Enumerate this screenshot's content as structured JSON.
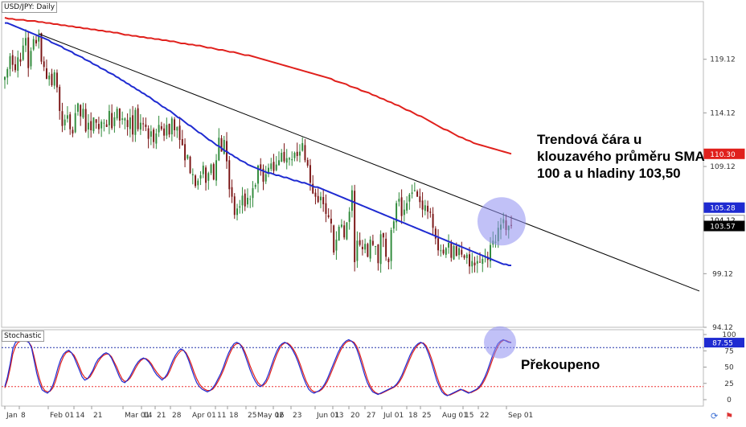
{
  "pair_label": "USD/JPY: Daily",
  "stoch_label": "Stochastic",
  "annotations": {
    "trendline_note": "Trendová čára u klouzavého průměru SMA 100 a u hladiny 103,50",
    "overbought_note": "Překoupeno"
  },
  "colors": {
    "sma100": "#1f2bd1",
    "sma200": "#e0201c",
    "bull": "#2f8a3a",
    "bear": "#7a1414",
    "stoch_k": "#1f2bd1",
    "stoch_d": "#e0201c",
    "highlight": "#8e8ef0",
    "level": "#e33"
  },
  "icons": {
    "settings": "refresh-icon",
    "flag": "flag-icon"
  },
  "chart_data": [
    {
      "type": "candlestick",
      "title": "USD/JPY: Daily",
      "ylim": [
        94.12,
        124.5
      ],
      "y_ticks": [
        94.12,
        99.12,
        104.12,
        109.12,
        114.12,
        119.12
      ],
      "x_tick_labels": [
        "Jan",
        "8",
        "Feb 01",
        "14",
        "21",
        "Mar 01",
        "14",
        "21",
        "28",
        "Apr 01",
        "11",
        "18",
        "25",
        "May 02",
        "16",
        "23",
        "Jun 01",
        "13",
        "20",
        "27",
        "Jul 01",
        "18",
        "25",
        "Aug 01",
        "15",
        "22",
        "Sep 01"
      ],
      "price_tags": [
        {
          "label": "110.30",
          "value": 110.3,
          "color": "#e0201c"
        },
        {
          "label": "105.28",
          "value": 105.28,
          "color": "#1f2bd1"
        },
        {
          "label": "104.12",
          "value": 104.12,
          "color": "#ffffff"
        },
        {
          "label": "103.57",
          "value": 103.57,
          "color": "#000000"
        }
      ],
      "closes": [
        117.5,
        118.2,
        119.4,
        118.6,
        118.1,
        119.3,
        118.9,
        120.4,
        121.1,
        118.3,
        119.9,
        121.0,
        120.6,
        121.4,
        118.9,
        118.4,
        117.3,
        117.6,
        116.7,
        117.9,
        116.5,
        114.3,
        112.9,
        113.5,
        113.9,
        112.6,
        112.2,
        114.1,
        115.0,
        113.8,
        114.5,
        112.4,
        113.2,
        112.5,
        113.7,
        113.2,
        112.6,
        113.3,
        113.2,
        112.8,
        114.3,
        112.7,
        113.7,
        114.5,
        113.4,
        113.6,
        113.6,
        112.8,
        113.7,
        112.1,
        114.4,
        112.6,
        113.2,
        113.1,
        112.8,
        111.7,
        112.4,
        111.4,
        112.2,
        113.0,
        112.6,
        112.0,
        113.0,
        112.1,
        113.6,
        112.5,
        112.8,
        111.6,
        111.1,
        109.7,
        110.2,
        108.5,
        108.4,
        107.3,
        107.8,
        108.3,
        109.2,
        107.6,
        108.5,
        109.3,
        107.9,
        109.7,
        111.8,
        110.5,
        111.6,
        109.6,
        107.0,
        106.3,
        104.6,
        105.2,
        105.4,
        106.4,
        105.4,
        106.2,
        106.1,
        107.1,
        107.4,
        109.2,
        108.9,
        107.7,
        108.4,
        109.0,
        109.4,
        108.7,
        109.3,
        109.7,
        110.4,
        109.6,
        109.9,
        109.9,
        109.8,
        110.4,
        110.1,
        110.5,
        111.3,
        109.7,
        109.2,
        107.6,
        106.6,
        106.3,
        105.8,
        106.3,
        105.6,
        104.7,
        104.4,
        103.8,
        101.1,
        102.3,
        103.5,
        103.7,
        102.5,
        103.9,
        104.9,
        106.9,
        100.2,
        102.2,
        101.8,
        101.4,
        101.9,
        100.7,
        102.3,
        101.8,
        101.7,
        100.1,
        102.8,
        102.5,
        100.7,
        100.2,
        103.2,
        104.0,
        105.7,
        106.1,
        104.5,
        105.1,
        105.7,
        106.5,
        106.7,
        106.9,
        106.3,
        105.8,
        105.1,
        105.5,
        104.9,
        104.8,
        103.4,
        102.4,
        101.3,
        101.3,
        101.0,
        101.5,
        102.0,
        100.6,
        101.7,
        100.8,
        101.5,
        100.9,
        100.6,
        100.9,
        99.8,
        100.3,
        99.9,
        100.3,
        100.2,
        100.5,
        100.8,
        100.4,
        101.8,
        102.2,
        102.1,
        103.4,
        103.7,
        104.2,
        103.2,
        103.6,
        103.6
      ],
      "series": [
        {
          "name": "SMA 100",
          "values": [
            122.5,
            122.5,
            122.4,
            122.3,
            122.2,
            122.1,
            122.0,
            121.9,
            121.8,
            121.7,
            121.6,
            121.5,
            121.4,
            121.3,
            121.2,
            121.1,
            121.0,
            120.9,
            120.7,
            120.6,
            120.5,
            120.4,
            120.3,
            120.1,
            120.0,
            119.9,
            119.8,
            119.6,
            119.5,
            119.4,
            119.3,
            119.1,
            119.0,
            118.9,
            118.7,
            118.6,
            118.5,
            118.3,
            118.2,
            118.1,
            117.9,
            117.8,
            117.7,
            117.5,
            117.4,
            117.2,
            117.1,
            116.9,
            116.8,
            116.6,
            116.5,
            116.3,
            116.2,
            116.0,
            115.9,
            115.7,
            115.6,
            115.4,
            115.2,
            115.1,
            114.9,
            114.7,
            114.6,
            114.4,
            114.3,
            114.1,
            113.9,
            113.7,
            113.6,
            113.4,
            113.2,
            113.0,
            112.9,
            112.7,
            112.5,
            112.3,
            112.2,
            112.0,
            111.8,
            111.6,
            111.5,
            111.3,
            111.1,
            111.0,
            110.8,
            110.6,
            110.5,
            110.3,
            110.2,
            110.0,
            109.9,
            109.7,
            109.6,
            109.5,
            109.3,
            109.2,
            109.1,
            109.0,
            108.9,
            108.8,
            108.7,
            108.6,
            108.5,
            108.5,
            108.4,
            108.3,
            108.3,
            108.2,
            108.1,
            108.1,
            108.0,
            107.9,
            107.8,
            107.8,
            107.7,
            107.6,
            107.6,
            107.5,
            107.4,
            107.3,
            107.2,
            107.2,
            107.1,
            107.0,
            106.9,
            106.8,
            106.7,
            106.6,
            106.5,
            106.4,
            106.3,
            106.2,
            106.1,
            106.0,
            105.9,
            105.8,
            105.7,
            105.6,
            105.5,
            105.4,
            105.3,
            105.2,
            105.1,
            105.0,
            104.9,
            104.8,
            104.7,
            104.6,
            104.5,
            104.4,
            104.3,
            104.2,
            104.1,
            104.0,
            103.9,
            103.8,
            103.7,
            103.6,
            103.5,
            103.4,
            103.3,
            103.2,
            103.1,
            103.0,
            102.9,
            102.8,
            102.7,
            102.6,
            102.5,
            102.4,
            102.3,
            102.2,
            102.1,
            102.0,
            101.9,
            101.8,
            101.7,
            101.6,
            101.5,
            101.4,
            101.3,
            101.2,
            101.1,
            101.0,
            100.9,
            100.8,
            100.7,
            100.6,
            100.5,
            100.4,
            100.3,
            100.2,
            100.1,
            100.0,
            100.0,
            99.9,
            99.9
          ]
        },
        {
          "name": "SMA 200",
          "values": [
            123.0,
            122.9,
            122.9,
            122.8,
            122.8,
            122.8,
            122.7,
            122.7,
            122.7,
            122.6,
            122.6,
            122.5,
            122.5,
            122.4,
            122.4,
            122.3,
            122.3,
            122.2,
            122.2,
            122.1,
            122.1,
            122.0,
            122.0,
            121.9,
            121.9,
            121.8,
            121.8,
            121.7,
            121.7,
            121.6,
            121.6,
            121.5,
            121.4,
            121.4,
            121.3,
            121.3,
            121.2,
            121.2,
            121.1,
            121.1,
            121.0,
            121.0,
            120.9,
            120.9,
            120.8,
            120.8,
            120.7,
            120.6,
            120.6,
            120.5,
            120.5,
            120.4,
            120.4,
            120.3,
            120.2,
            120.2,
            120.1,
            120.0,
            120.0,
            119.9,
            119.8,
            119.8,
            119.7,
            119.6,
            119.5,
            119.5,
            119.4,
            119.3,
            119.2,
            119.1,
            119.0,
            118.9,
            118.8,
            118.7,
            118.6,
            118.5,
            118.4,
            118.3,
            118.2,
            118.1,
            118.0,
            117.9,
            117.8,
            117.7,
            117.6,
            117.5,
            117.4,
            117.3,
            117.1,
            117.0,
            116.9,
            116.8,
            116.6,
            116.5,
            116.4,
            116.2,
            116.1,
            116.0,
            115.8,
            115.7,
            115.5,
            115.4,
            115.2,
            115.1,
            114.9,
            114.8,
            114.6,
            114.4,
            114.3,
            114.1,
            113.9,
            113.8,
            113.6,
            113.4,
            113.2,
            113.0,
            112.8,
            112.6,
            112.5,
            112.3,
            112.1,
            111.9,
            111.8,
            111.6,
            111.5,
            111.3,
            111.2,
            111.1,
            111.0,
            110.9,
            110.8,
            110.7,
            110.6,
            110.5,
            110.4,
            110.3,
            110.3,
            110.3,
            110.3,
            110.3,
            110.3,
            110.3,
            110.3,
            110.3,
            110.3,
            110.3,
            110.3,
            110.3,
            110.3,
            110.3,
            110.3,
            110.3,
            110.3,
            110.3,
            110.3,
            110.3,
            110.3,
            110.3,
            110.3,
            110.3,
            110.3,
            110.3,
            110.3,
            110.3,
            110.3,
            110.3,
            110.3,
            110.3,
            110.3,
            110.3,
            110.3,
            110.3,
            110.3,
            110.3,
            110.3,
            110.3,
            110.3,
            110.3,
            110.3,
            110.3,
            110.3,
            110.3,
            110.3,
            110.3,
            110.3,
            110.3,
            110.3,
            110.3,
            110.3,
            110.3,
            110.3,
            110.3,
            110.3,
            110.3,
            110.3,
            110.3
          ]
        }
      ],
      "trendline": {
        "from": [
          1,
          121.5
        ],
        "to": [
          270,
          97.5
        ]
      }
    },
    {
      "type": "line",
      "title": "Stochastic",
      "ylim": [
        0,
        100
      ],
      "y_ticks": [
        0,
        25,
        50,
        75,
        100
      ],
      "levels": [
        80,
        20
      ],
      "price_tags": [
        {
          "label": "87.55",
          "value": 87.55
        }
      ],
      "series": [
        {
          "name": "%K",
          "values": [
            20,
            35,
            55,
            78,
            88,
            90,
            92,
            92,
            90,
            88,
            80,
            60,
            40,
            25,
            15,
            12,
            10,
            14,
            22,
            35,
            50,
            62,
            70,
            74,
            76,
            72,
            65,
            55,
            45,
            35,
            30,
            32,
            38,
            45,
            55,
            62,
            66,
            70,
            72,
            70,
            64,
            55,
            45,
            35,
            28,
            26,
            30,
            36,
            44,
            52,
            58,
            62,
            64,
            62,
            58,
            52,
            44,
            38,
            34,
            30,
            34,
            40,
            50,
            60,
            68,
            74,
            78,
            76,
            70,
            60,
            48,
            36,
            26,
            20,
            16,
            14,
            12,
            14,
            18,
            24,
            32,
            40,
            50,
            62,
            72,
            80,
            86,
            88,
            86,
            80,
            70,
            58,
            46,
            36,
            28,
            22,
            20,
            24,
            30,
            40,
            52,
            64,
            74,
            82,
            86,
            88,
            86,
            82,
            76,
            68,
            58,
            46,
            34,
            24,
            16,
            12,
            10,
            12,
            14,
            18,
            24,
            32,
            42,
            52,
            62,
            72,
            80,
            86,
            90,
            92,
            90,
            86,
            78,
            66,
            52,
            38,
            26,
            18,
            12,
            10,
            8,
            10,
            12,
            14,
            16,
            18,
            20,
            24,
            30,
            38,
            48,
            58,
            68,
            76,
            82,
            86,
            88,
            86,
            80,
            70,
            58,
            44,
            30,
            20,
            12,
            8,
            6,
            8,
            10,
            12,
            14,
            16,
            14,
            12,
            10,
            12,
            14,
            16,
            20,
            26,
            34,
            44,
            56,
            68,
            78,
            86,
            90,
            92,
            90,
            88,
            87.55
          ]
        },
        {
          "name": "%D",
          "values": [
            18,
            30,
            48,
            70,
            82,
            88,
            90,
            91,
            90,
            88,
            82,
            66,
            48,
            32,
            20,
            14,
            12,
            13,
            18,
            28,
            42,
            56,
            66,
            72,
            74,
            72,
            68,
            60,
            50,
            40,
            34,
            32,
            35,
            42,
            50,
            58,
            64,
            68,
            70,
            70,
            66,
            58,
            50,
            40,
            32,
            28,
            29,
            33,
            40,
            48,
            55,
            60,
            63,
            63,
            60,
            55,
            48,
            42,
            37,
            33,
            33,
            37,
            45,
            55,
            64,
            70,
            75,
            76,
            72,
            64,
            54,
            42,
            32,
            24,
            19,
            16,
            14,
            14,
            16,
            21,
            28,
            36,
            45,
            56,
            67,
            76,
            83,
            86,
            86,
            82,
            74,
            64,
            52,
            42,
            33,
            26,
            22,
            22,
            26,
            34,
            46,
            58,
            69,
            78,
            84,
            87,
            87,
            84,
            79,
            72,
            63,
            52,
            40,
            29,
            21,
            15,
            12,
            12,
            13,
            16,
            21,
            28,
            37,
            47,
            57,
            67,
            76,
            83,
            88,
            90,
            90,
            88,
            82,
            72,
            59,
            45,
            32,
            22,
            15,
            11,
            9,
            9,
            11,
            13,
            15,
            17,
            19,
            22,
            27,
            34,
            43,
            53,
            63,
            72,
            79,
            84,
            87,
            87,
            83,
            75,
            64,
            51,
            37,
            25,
            16,
            10,
            7,
            7,
            9,
            11,
            13,
            15,
            15,
            13,
            11,
            11,
            13,
            15,
            18,
            23,
            30,
            39,
            50,
            62,
            73,
            82,
            88,
            91,
            91,
            89,
            88
          ]
        }
      ]
    }
  ]
}
